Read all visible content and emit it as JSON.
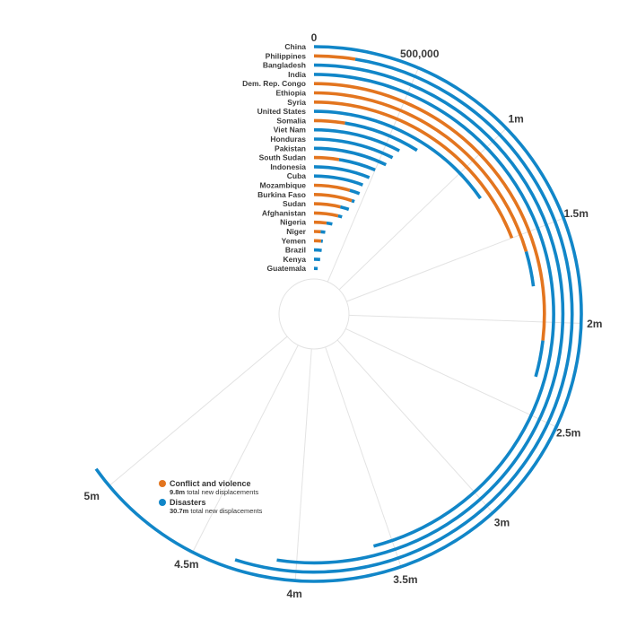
{
  "chart_data": {
    "type": "radial-bar",
    "title": "",
    "colors": {
      "conflict": "#e3751f",
      "disasters": "#1186c8",
      "grid": "#e3e3e3"
    },
    "scale": {
      "min": 0,
      "max": 5000000,
      "ticks": [
        {
          "value": 0,
          "label": "0"
        },
        {
          "value": 500000,
          "label": "500,000"
        },
        {
          "value": 1000000,
          "label": "1m"
        },
        {
          "value": 1500000,
          "label": "1.5m"
        },
        {
          "value": 2000000,
          "label": "2m"
        },
        {
          "value": 2500000,
          "label": "2.5m"
        },
        {
          "value": 3000000,
          "label": "3m"
        },
        {
          "value": 3500000,
          "label": "3.5m"
        },
        {
          "value": 4000000,
          "label": "4m"
        },
        {
          "value": 4500000,
          "label": "4.5m"
        },
        {
          "value": 5000000,
          "label": "5m"
        }
      ]
    },
    "series": [
      {
        "name": "Conflict and violence",
        "color_key": "conflict"
      },
      {
        "name": "Disasters",
        "color_key": "disasters"
      }
    ],
    "countries": [
      {
        "name": "China",
        "conflict": 0,
        "total": 5100000
      },
      {
        "name": "Philippines",
        "conflict": 200000,
        "total": 4300000
      },
      {
        "name": "Bangladesh",
        "conflict": 0,
        "total": 4100000
      },
      {
        "name": "India",
        "conflict": 0,
        "total": 3600000
      },
      {
        "name": "Dem. Rep. Congo",
        "conflict": 2100000,
        "total": 2300000
      },
      {
        "name": "Ethiopia",
        "conflict": 1600000,
        "total": 1800000
      },
      {
        "name": "Syria",
        "conflict": 1500000,
        "total": 1500000
      },
      {
        "name": "United States",
        "conflict": 0,
        "total": 1200000
      },
      {
        "name": "Somalia",
        "conflict": 200000,
        "total": 700000
      },
      {
        "name": "Viet Nam",
        "conflict": 0,
        "total": 600000
      },
      {
        "name": "Honduras",
        "conflict": 0,
        "total": 580000
      },
      {
        "name": "Pakistan",
        "conflict": 0,
        "total": 560000
      },
      {
        "name": "South Sudan",
        "conflict": 200000,
        "total": 500000
      },
      {
        "name": "Indonesia",
        "conflict": 0,
        "total": 480000
      },
      {
        "name": "Cuba",
        "conflict": 0,
        "total": 450000
      },
      {
        "name": "Mozambique",
        "conflict": 350000,
        "total": 450000
      },
      {
        "name": "Burkina Faso",
        "conflict": 400000,
        "total": 430000
      },
      {
        "name": "Sudan",
        "conflict": 300000,
        "total": 400000
      },
      {
        "name": "Afghanistan",
        "conflict": 300000,
        "total": 350000
      },
      {
        "name": "Nigeria",
        "conflict": 170000,
        "total": 250000
      },
      {
        "name": "Niger",
        "conflict": 100000,
        "total": 170000
      },
      {
        "name": "Yemen",
        "conflict": 120000,
        "total": 150000
      },
      {
        "name": "Brazil",
        "conflict": 0,
        "total": 150000
      },
      {
        "name": "Kenya",
        "conflict": 0,
        "total": 140000
      },
      {
        "name": "Guatemala",
        "conflict": 0,
        "total": 100000
      }
    ],
    "legend": [
      {
        "title": "Conflict and violence",
        "value": "9.8m",
        "text": "total new displacements",
        "color_key": "conflict"
      },
      {
        "title": "Disasters",
        "value": "30.7m",
        "text": "total new displacements",
        "color_key": "disasters"
      }
    ]
  }
}
